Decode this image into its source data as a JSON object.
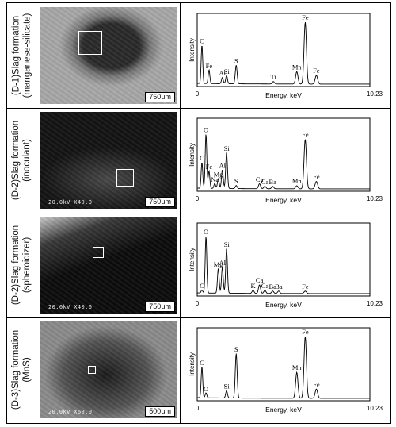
{
  "rows": [
    {
      "label_lines": [
        "(D-1)Slag formation",
        "(manganese-silicate)"
      ],
      "scale_bar": "750μm",
      "micrograph_text": "",
      "roi_shape": "square",
      "image_tone": [
        "#2b2b2b",
        "#7a7a7a",
        "#a9a9a9"
      ]
    },
    {
      "label_lines": [
        "(D-2)Slag formation",
        "(inoculant)"
      ],
      "scale_bar": "750μm",
      "micrograph_text": "20.0kV X40.0",
      "roi_shape": "square",
      "image_tone": [
        "#141414",
        "#4a4a4a",
        "#9b9b9b"
      ]
    },
    {
      "label_lines": [
        "(D-2)Slag formation",
        "(spheroidizer)"
      ],
      "scale_bar": "750μm",
      "micrograph_text": "20.0kV X40.0",
      "roi_shape": "square",
      "image_tone": [
        "#0d0d0d",
        "#3a3a3a",
        "#cfcfcf"
      ]
    },
    {
      "label_lines": [
        "(D-3)Slag formation",
        "(MnS)"
      ],
      "scale_bar": "500μm",
      "micrograph_text": "20.0kV X60.0",
      "roi_shape": "square",
      "image_tone": [
        "#1c1c1c",
        "#555555",
        "#8c8c8c"
      ]
    }
  ],
  "chart_data": [
    {
      "type": "line",
      "xlabel": "Energy, keV",
      "ylabel": "Intensity",
      "x_start_label": "0",
      "x_end_label": "10.23",
      "xlim": [
        0,
        10.23
      ],
      "peaks": [
        {
          "label": "C",
          "x": 0.28,
          "y": 0.62
        },
        {
          "label": "Fe",
          "x": 0.7,
          "y": 0.22
        },
        {
          "label": "Al",
          "x": 1.49,
          "y": 0.1
        },
        {
          "label": "Si",
          "x": 1.74,
          "y": 0.13
        },
        {
          "label": "S",
          "x": 2.31,
          "y": 0.3
        },
        {
          "label": "Ti",
          "x": 4.51,
          "y": 0.04
        },
        {
          "label": "Mn",
          "x": 5.9,
          "y": 0.2
        },
        {
          "label": "Fe",
          "x": 6.4,
          "y": 1.0
        },
        {
          "label": "Fe",
          "x": 7.06,
          "y": 0.14
        }
      ]
    },
    {
      "type": "line",
      "xlabel": "Energy, keV",
      "ylabel": "Intensity",
      "x_start_label": "0",
      "x_end_label": "10.23",
      "xlim": [
        0,
        10.23
      ],
      "peaks": [
        {
          "label": "C",
          "x": 0.28,
          "y": 0.42
        },
        {
          "label": "O",
          "x": 0.52,
          "y": 0.88
        },
        {
          "label": "Fe",
          "x": 0.7,
          "y": 0.28
        },
        {
          "label": "Na",
          "x": 1.04,
          "y": 0.08
        },
        {
          "label": "Mg",
          "x": 1.25,
          "y": 0.16
        },
        {
          "label": "Al",
          "x": 1.49,
          "y": 0.3
        },
        {
          "label": "Si",
          "x": 1.74,
          "y": 0.58
        },
        {
          "label": "S",
          "x": 2.31,
          "y": 0.05
        },
        {
          "label": "Ca",
          "x": 3.69,
          "y": 0.08
        },
        {
          "label": "Ca",
          "x": 4.01,
          "y": 0.04
        },
        {
          "label": "Ba",
          "x": 4.47,
          "y": 0.04
        },
        {
          "label": "Mn",
          "x": 5.9,
          "y": 0.05
        },
        {
          "label": "Fe",
          "x": 6.4,
          "y": 0.8
        },
        {
          "label": "Fe",
          "x": 7.06,
          "y": 0.12
        }
      ]
    },
    {
      "type": "line",
      "xlabel": "Energy, keV",
      "ylabel": "Intensity",
      "x_start_label": "0",
      "x_end_label": "10.23",
      "xlim": [
        0,
        10.23
      ],
      "peaks": [
        {
          "label": "C",
          "x": 0.28,
          "y": 0.05
        },
        {
          "label": "O",
          "x": 0.52,
          "y": 0.92
        },
        {
          "label": "Mg",
          "x": 1.25,
          "y": 0.4
        },
        {
          "label": "Al",
          "x": 1.49,
          "y": 0.42
        },
        {
          "label": "Si",
          "x": 1.74,
          "y": 0.72
        },
        {
          "label": "K",
          "x": 3.31,
          "y": 0.05
        },
        {
          "label": "Ca",
          "x": 3.69,
          "y": 0.14
        },
        {
          "label": "Ca",
          "x": 4.01,
          "y": 0.05
        },
        {
          "label": "Ba",
          "x": 4.47,
          "y": 0.04
        },
        {
          "label": "Ba",
          "x": 4.83,
          "y": 0.04
        },
        {
          "label": "Fe",
          "x": 6.4,
          "y": 0.04
        }
      ]
    },
    {
      "type": "line",
      "xlabel": "Energy, keV",
      "ylabel": "Intensity",
      "x_start_label": "0",
      "x_end_label": "10.23",
      "xlim": [
        0,
        10.23
      ],
      "peaks": [
        {
          "label": "C",
          "x": 0.28,
          "y": 0.5
        },
        {
          "label": "O",
          "x": 0.52,
          "y": 0.08
        },
        {
          "label": "Si",
          "x": 1.74,
          "y": 0.12
        },
        {
          "label": "S",
          "x": 2.31,
          "y": 0.72
        },
        {
          "label": "Mn",
          "x": 5.9,
          "y": 0.42
        },
        {
          "label": "Fe",
          "x": 6.4,
          "y": 1.0
        },
        {
          "label": "Fe",
          "x": 7.06,
          "y": 0.15
        }
      ]
    }
  ]
}
